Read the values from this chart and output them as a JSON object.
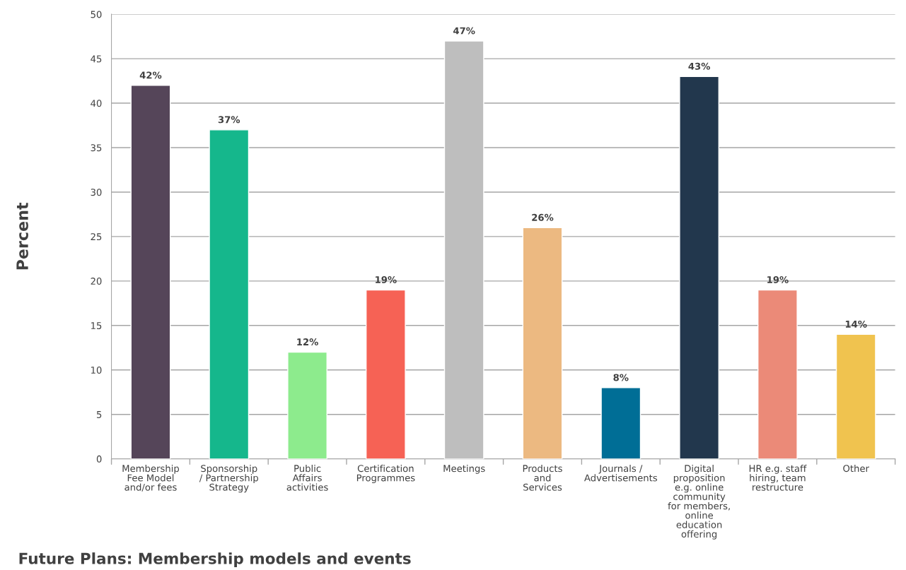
{
  "chart_data": {
    "type": "bar",
    "title": "Future Plans: Membership models and events",
    "ylabel": "Percent",
    "categories": [
      "Membership\nFee Model\nand/or fees",
      "Sponsorship\n/ Partnership\nStrategy",
      "Public\nAffairs\nactivities",
      "Certification\nProgrammes",
      "Meetings",
      "Products\nand\nServices",
      "Journals /\nAdvertisements",
      "Digital\nproposition\ne.g. online\ncommunity\nfor members,\nonline\neducation\noffering",
      "HR e.g. staff\nhiring, team\nrestructure",
      "Other"
    ],
    "values": [
      42,
      37,
      12,
      19,
      47,
      26,
      8,
      43,
      19,
      14
    ],
    "value_labels": [
      "42%",
      "37%",
      "12%",
      "19%",
      "47%",
      "26%",
      "8%",
      "43%",
      "19%",
      "14%"
    ],
    "colors": [
      "#554559",
      "#15b78c",
      "#8deb8d",
      "#f66255",
      "#bebebe",
      "#ecb981",
      "#006e96",
      "#22374d",
      "#eb8a78",
      "#f0c34f"
    ],
    "ylim": [
      0,
      50
    ],
    "yticks": [
      0,
      5,
      10,
      15,
      20,
      25,
      30,
      35,
      40,
      45,
      50
    ],
    "grid": "y"
  }
}
